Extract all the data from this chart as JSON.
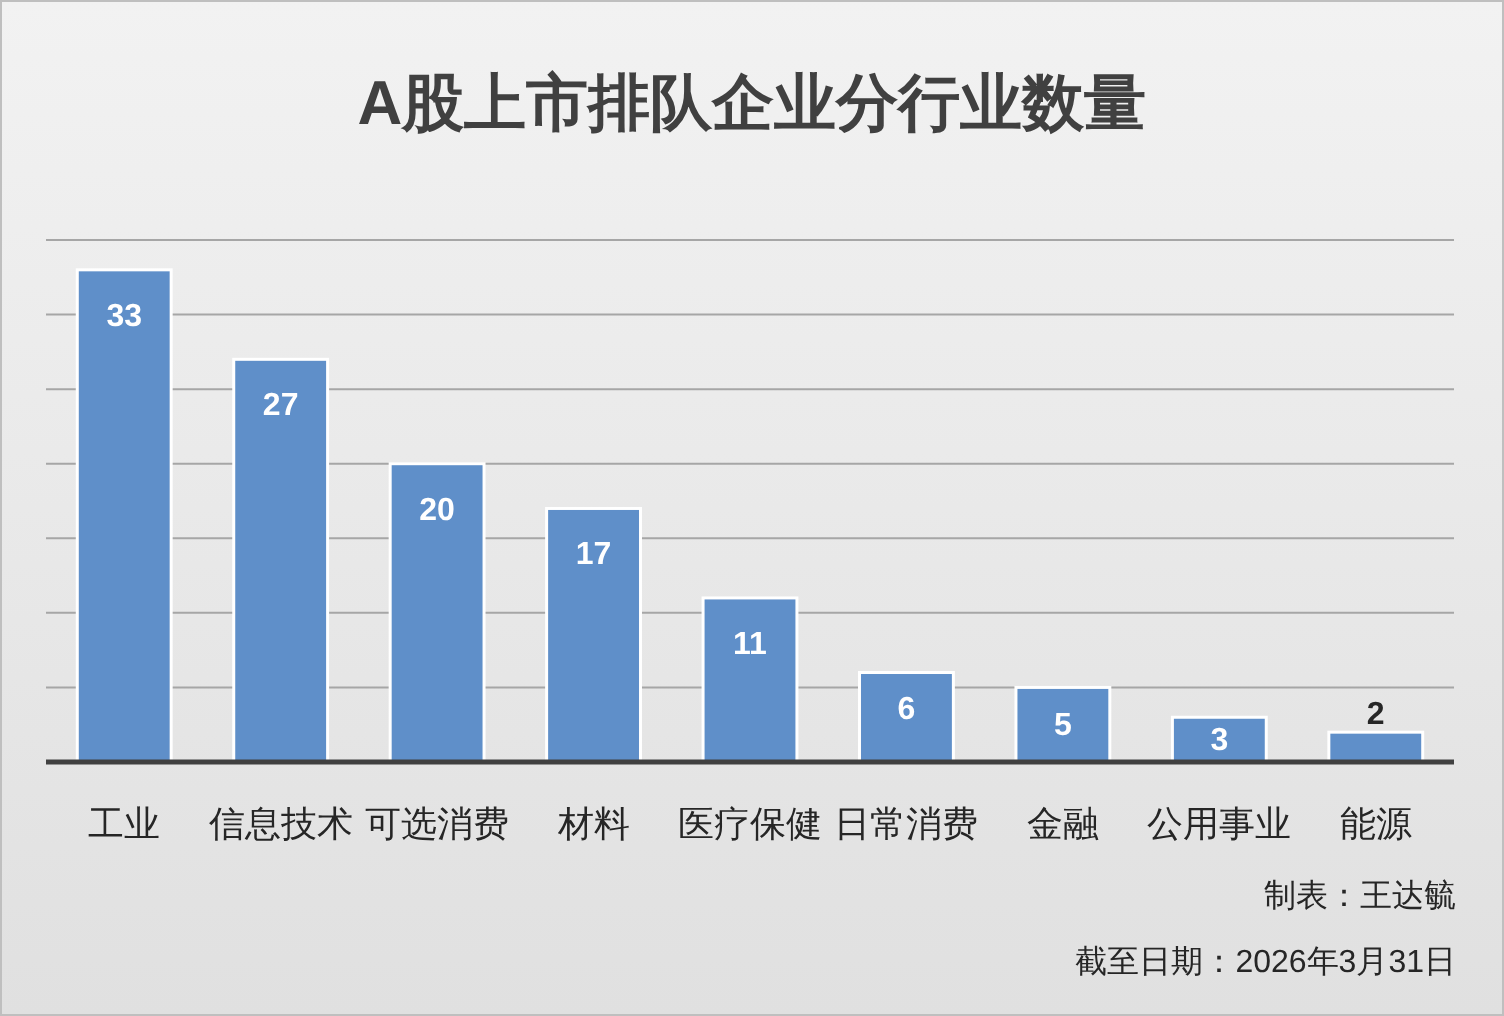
{
  "chart_data": {
    "type": "bar",
    "title": "A股上市排队企业分行业数量",
    "categories": [
      "工业",
      "信息技术",
      "可选消费",
      "材料",
      "医疗保健",
      "日常消费",
      "金融",
      "公用事业",
      "能源"
    ],
    "values": [
      33,
      27,
      20,
      17,
      11,
      6,
      5,
      3,
      2
    ],
    "color": "#5f8fc9",
    "data_labels": true,
    "ylim": [
      0,
      35
    ],
    "yticks": [
      {
        "value": 0,
        "label": null
      },
      {
        "value": 5,
        "label": null
      },
      {
        "value": 10,
        "label": null
      },
      {
        "value": 15,
        "label": null
      },
      {
        "value": 20,
        "label": null
      },
      {
        "value": 25,
        "label": null
      },
      {
        "value": 30,
        "label": null
      },
      {
        "value": 35,
        "label": null
      }
    ],
    "grid": "y",
    "tick_labels": "x",
    "annotations": [
      "制表：王达毓",
      "截至日期：2026年3月31日"
    ]
  }
}
